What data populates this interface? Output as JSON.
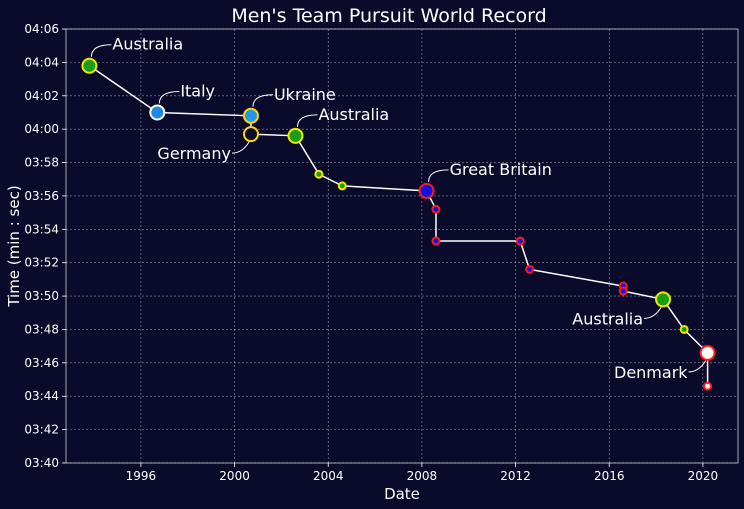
{
  "chart_data": {
    "type": "line",
    "title": "Men's Team Pursuit World Record",
    "xlabel": "Date",
    "ylabel": "Time (min : sec)",
    "xlim": [
      1992.8,
      2021.5
    ],
    "ylim": [
      220,
      246
    ],
    "x_ticks": [
      {
        "value": 1996,
        "label": "1996"
      },
      {
        "value": 2000,
        "label": "2000"
      },
      {
        "value": 2004,
        "label": "2004"
      },
      {
        "value": 2008,
        "label": "2008"
      },
      {
        "value": 2012,
        "label": "2012"
      },
      {
        "value": 2016,
        "label": "2016"
      },
      {
        "value": 2020,
        "label": "2020"
      }
    ],
    "y_ticks": [
      {
        "value": 220,
        "label": "03:40"
      },
      {
        "value": 222,
        "label": "03:42"
      },
      {
        "value": 224,
        "label": "03:44"
      },
      {
        "value": 226,
        "label": "03:46"
      },
      {
        "value": 228,
        "label": "03:48"
      },
      {
        "value": 230,
        "label": "03:50"
      },
      {
        "value": 232,
        "label": "03:52"
      },
      {
        "value": 234,
        "label": "03:54"
      },
      {
        "value": 236,
        "label": "03:56"
      },
      {
        "value": 238,
        "label": "03:58"
      },
      {
        "value": 240,
        "label": "04:00"
      },
      {
        "value": 242,
        "label": "04:02"
      },
      {
        "value": 244,
        "label": "04:04"
      },
      {
        "value": 246,
        "label": "04:06"
      }
    ],
    "grid": true,
    "colors": {
      "background": "#0a0a2a",
      "line": "#ffffff",
      "australia_fill": "#1a9e1a",
      "australia_edge": "#f2e600",
      "italy_fill": "#1e88e5",
      "italy_edge": "#ffffff",
      "ukraine_fill": "#2196f3",
      "ukraine_edge": "#ffd700",
      "germany_fill": "#0a0a2a",
      "germany_edge": "#ffd700",
      "gb_fill": "#1010e0",
      "gb_edge": "#ff1a1a",
      "denmark_fill": "#ffffff",
      "denmark_edge": "#ff1a1a"
    },
    "points": [
      {
        "date": "1993.8",
        "x": 1993.8,
        "y": 243.8,
        "team": "Australia",
        "major": true
      },
      {
        "date": "1996.7",
        "x": 1996.7,
        "y": 241.0,
        "team": "Italy",
        "major": true
      },
      {
        "date": "2000.7",
        "x": 2000.7,
        "y": 240.8,
        "team": "Ukraine",
        "major": true
      },
      {
        "date": "2000.7",
        "x": 2000.7,
        "y": 239.7,
        "team": "Germany",
        "major": true
      },
      {
        "date": "2002.6",
        "x": 2002.6,
        "y": 239.6,
        "team": "Australia",
        "major": true
      },
      {
        "date": "2003.6",
        "x": 2003.6,
        "y": 237.3,
        "team": "Australia",
        "major": false
      },
      {
        "date": "2004.6",
        "x": 2004.6,
        "y": 236.6,
        "team": "Australia",
        "major": false
      },
      {
        "date": "2008.2",
        "x": 2008.2,
        "y": 236.3,
        "team": "Great Britain",
        "major": true
      },
      {
        "date": "2008.6",
        "x": 2008.6,
        "y": 235.2,
        "team": "Great Britain",
        "major": false
      },
      {
        "date": "2008.6",
        "x": 2008.6,
        "y": 233.3,
        "team": "Great Britain",
        "major": false
      },
      {
        "date": "2012.2",
        "x": 2012.2,
        "y": 233.3,
        "team": "Great Britain",
        "major": false
      },
      {
        "date": "2012.6",
        "x": 2012.6,
        "y": 231.6,
        "team": "Great Britain",
        "major": false
      },
      {
        "date": "2016.6",
        "x": 2016.6,
        "y": 230.6,
        "team": "Great Britain",
        "major": false
      },
      {
        "date": "2016.6",
        "x": 2016.6,
        "y": 230.3,
        "team": "Great Britain",
        "major": false
      },
      {
        "date": "2018.3",
        "x": 2018.3,
        "y": 229.8,
        "team": "Australia",
        "major": true
      },
      {
        "date": "2019.2",
        "x": 2019.2,
        "y": 228.0,
        "team": "Australia",
        "major": false
      },
      {
        "date": "2020.2",
        "x": 2020.2,
        "y": 226.6,
        "team": "Denmark",
        "major": true
      },
      {
        "date": "2020.2",
        "x": 2020.2,
        "y": 224.6,
        "team": "Denmark",
        "major": false
      }
    ],
    "annotations": [
      {
        "text": "Australia",
        "point": 0,
        "side": "right"
      },
      {
        "text": "Italy",
        "point": 1,
        "side": "right"
      },
      {
        "text": "Ukraine",
        "point": 2,
        "side": "right"
      },
      {
        "text": "Germany",
        "point": 3,
        "side": "left"
      },
      {
        "text": "Australia",
        "point": 4,
        "side": "right"
      },
      {
        "text": "Great Britain",
        "point": 7,
        "side": "right"
      },
      {
        "text": "Australia",
        "point": 14,
        "side": "left"
      },
      {
        "text": "Denmark",
        "point": 16,
        "side": "left"
      }
    ]
  }
}
